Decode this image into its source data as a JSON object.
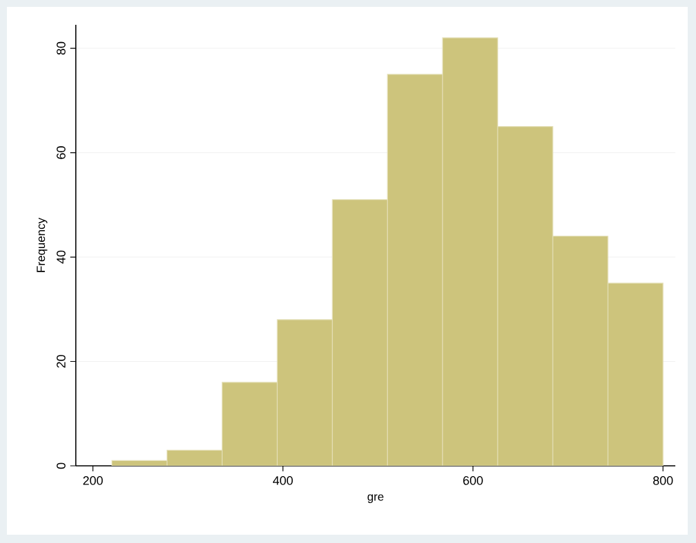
{
  "chart_data": {
    "type": "histogram",
    "xlabel": "gre",
    "ylabel": "Frequency",
    "bins": [
      220,
      278,
      336,
      394,
      452,
      510,
      568,
      626,
      684,
      742,
      800
    ],
    "values": [
      1,
      3,
      16,
      28,
      51,
      75,
      82,
      65,
      44,
      35
    ],
    "color": "#cdc47c",
    "xlim": [
      182,
      813
    ],
    "ylim": [
      0,
      84.5
    ],
    "xticks": [
      200,
      400,
      600,
      800
    ],
    "yticks": [
      0,
      20,
      40,
      60,
      80
    ],
    "grid": "y"
  }
}
